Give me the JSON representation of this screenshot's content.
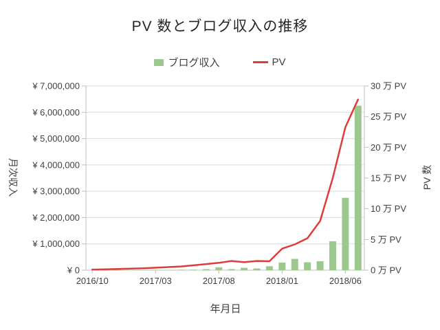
{
  "title": "PV 数とブログ収入の推移",
  "legend": {
    "revenue_label": "ブログ収入",
    "pv_label": "PV"
  },
  "axes": {
    "left_title": "月次収入",
    "right_title": "PV 数",
    "x_title": "年月日",
    "left_tick_labels": [
      "¥ 0",
      "¥ 1,000,000",
      "¥ 2,000,000",
      "¥ 3,000,000",
      "¥ 4,000,000",
      "¥ 5,000,000",
      "¥ 6,000,000",
      "¥ 7,000,000"
    ],
    "right_tick_labels": [
      "0 万 PV",
      "5 万 PV",
      "10 万 PV",
      "15 万 PV",
      "20 万 PV",
      "25 万 PV",
      "30 万 PV"
    ],
    "x_tick_labels": [
      "2016/10",
      "2017/03",
      "2017/08",
      "2018/01",
      "2018/06"
    ],
    "x_tick_indices": [
      0,
      5,
      10,
      15,
      20
    ]
  },
  "colors": {
    "bar": "#9cc88e",
    "line": "#df3b3b",
    "grid": "#d9d9d9",
    "axis": "#bfbfbf",
    "text": "#3f3f3f"
  },
  "chart_data": {
    "type": "bar",
    "subtype": "bar-and-line-dual-axis",
    "title": "PV 数とブログ収入の推移",
    "xlabel": "年月日",
    "ylabel_left": "月次収入",
    "ylabel_right": "PV 数",
    "ylim_left": [
      0,
      7000000
    ],
    "ylim_right": [
      0,
      300000
    ],
    "grid": true,
    "legend_position": "top",
    "categories": [
      "2016/10",
      "2016/11",
      "2016/12",
      "2017/01",
      "2017/02",
      "2017/03",
      "2017/04",
      "2017/05",
      "2017/06",
      "2017/07",
      "2017/08",
      "2017/09",
      "2017/10",
      "2017/11",
      "2017/12",
      "2018/01",
      "2018/02",
      "2018/03",
      "2018/04",
      "2018/05",
      "2018/06",
      "2018/07"
    ],
    "series": [
      {
        "name": "ブログ収入",
        "type": "bar",
        "axis": "left",
        "unit": "JPY",
        "values": [
          0,
          3000,
          5000,
          8000,
          10000,
          15000,
          12000,
          18000,
          20000,
          40000,
          110000,
          40000,
          90000,
          65000,
          150000,
          290000,
          430000,
          300000,
          340000,
          1100000,
          2750000,
          6250000
        ]
      },
      {
        "name": "PV",
        "type": "line",
        "axis": "right",
        "unit": "PV",
        "values": [
          1000,
          1500,
          2000,
          2500,
          3000,
          4000,
          5000,
          6000,
          8000,
          10000,
          12000,
          15000,
          13000,
          15000,
          14500,
          35000,
          42000,
          52000,
          80000,
          150000,
          233000,
          278000
        ]
      }
    ]
  }
}
